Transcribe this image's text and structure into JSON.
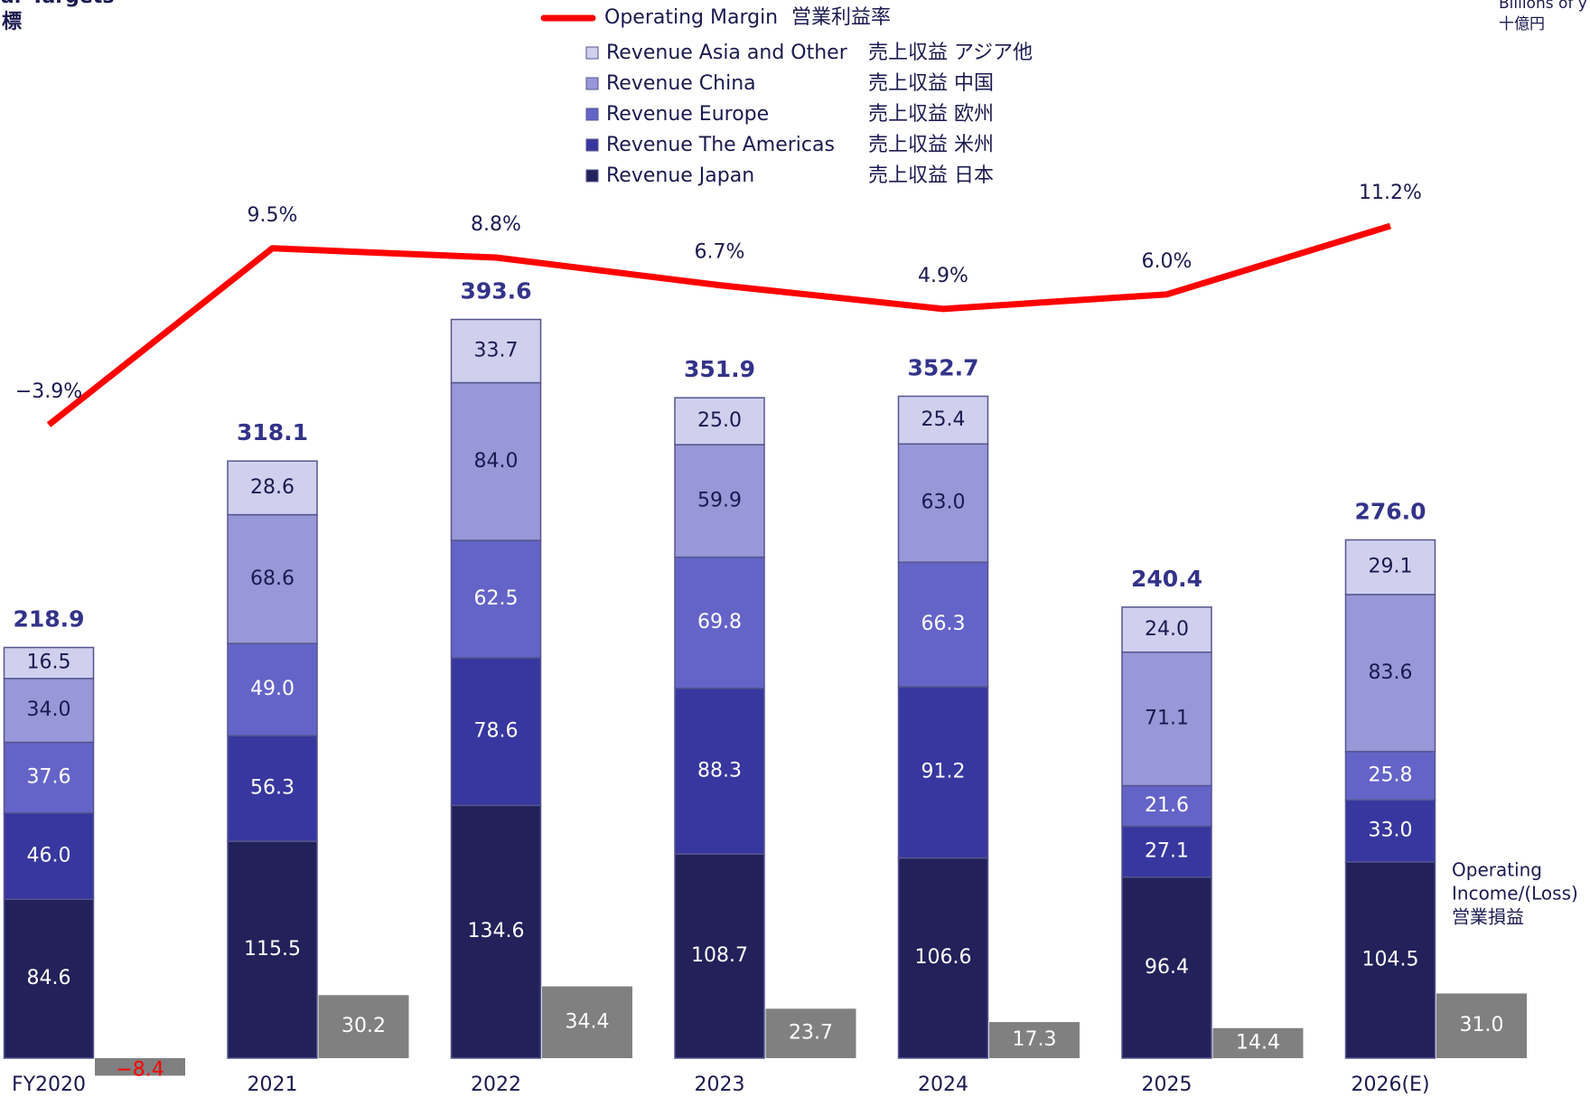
{
  "chart_data": {
    "type": "stacked-bar",
    "title_lines": [
      "ear Targets",
      "標"
    ],
    "unit_lines": [
      "Billions of y",
      "十億円"
    ],
    "annotation_lines": [
      "Operating",
      "Income/(Loss)",
      "営業損益"
    ],
    "categories": [
      "FY2020",
      "2021",
      "2022",
      "2023",
      "2024",
      "2025",
      "2026(E)"
    ],
    "ylim": [
      0,
      500
    ],
    "y2lim": [
      0,
      450
    ],
    "y3lim": [
      -52,
      19.3
    ],
    "series": [
      {
        "name": "Revenue Japan",
        "name_ja": "売上収益 日本",
        "color": "#23215a",
        "label_color": "#ffffff",
        "values": [
          84.6,
          115.5,
          134.6,
          108.7,
          106.6,
          96.4,
          104.5
        ],
        "value_labels": [
          "84.6",
          "115.5",
          "134.6",
          "108.7",
          "106.6",
          "96.4",
          "104.5"
        ]
      },
      {
        "name": "Revenue The Americas",
        "name_ja": "売上収益 米州",
        "color": "#37379f",
        "label_color": "#ffffff",
        "values": [
          46.0,
          56.3,
          78.6,
          88.3,
          91.2,
          27.1,
          33.0
        ],
        "value_labels": [
          "46.0",
          "56.3",
          "78.6",
          "88.3",
          "91.2",
          "27.1",
          "33.0"
        ]
      },
      {
        "name": "Revenue Europe",
        "name_ja": "売上収益 欧州",
        "color": "#6464c8",
        "label_color": "#ffffff",
        "values": [
          37.6,
          49.0,
          62.5,
          69.8,
          66.3,
          21.6,
          25.8
        ],
        "value_labels": [
          "37.6",
          "49.0",
          "62.5",
          "69.8",
          "66.3",
          "21.6",
          "25.8"
        ]
      },
      {
        "name": "Revenue China",
        "name_ja": "売上収益 中国",
        "color": "#9898d8",
        "label_color": "#1a1a50",
        "values": [
          34.0,
          68.6,
          84.0,
          59.9,
          63.0,
          71.1,
          83.6
        ],
        "value_labels": [
          "34.0",
          "68.6",
          "84.0",
          "59.9",
          "63.0",
          "71.1",
          "83.6"
        ]
      },
      {
        "name": "Revenue Asia and Other",
        "name_ja": "売上収益 アジア他",
        "color": "#d0d0ee",
        "label_color": "#1a1a50",
        "values": [
          16.5,
          28.6,
          33.7,
          25.0,
          25.4,
          24.0,
          29.1
        ],
        "value_labels": [
          "16.5",
          "28.6",
          "33.7",
          "25.0",
          "25.4",
          "24.0",
          "29.1"
        ]
      }
    ],
    "totals": {
      "color": "#33338a",
      "values": [
        218.9,
        318.1,
        393.6,
        351.9,
        352.7,
        240.4,
        276.0
      ],
      "value_labels": [
        "218.9",
        "318.1",
        "393.6",
        "351.9",
        "352.7",
        "240.4",
        "276.0"
      ]
    },
    "operating_income": {
      "axis": "y2",
      "color": "#808080",
      "label_color": "#ffffff",
      "negative_label_color": "#ff0000",
      "values": [
        -8.4,
        30.2,
        34.4,
        23.7,
        17.3,
        14.4,
        31.0
      ],
      "value_labels": [
        "−8.4",
        "30.2",
        "34.4",
        "23.7",
        "17.3",
        "14.4",
        "31.0"
      ]
    },
    "operating_margin": {
      "axis": "y3",
      "name": "Operating Margin",
      "name_ja": "営業利益率",
      "color": "#ff0000",
      "label_color": "#1a1a50",
      "values": [
        -3.9,
        9.5,
        8.8,
        6.7,
        4.9,
        6.0,
        11.2
      ],
      "value_labels": [
        "−3.9%",
        "9.5%",
        "8.8%",
        "6.7%",
        "4.9%",
        "6.0%",
        "11.2%"
      ]
    }
  }
}
